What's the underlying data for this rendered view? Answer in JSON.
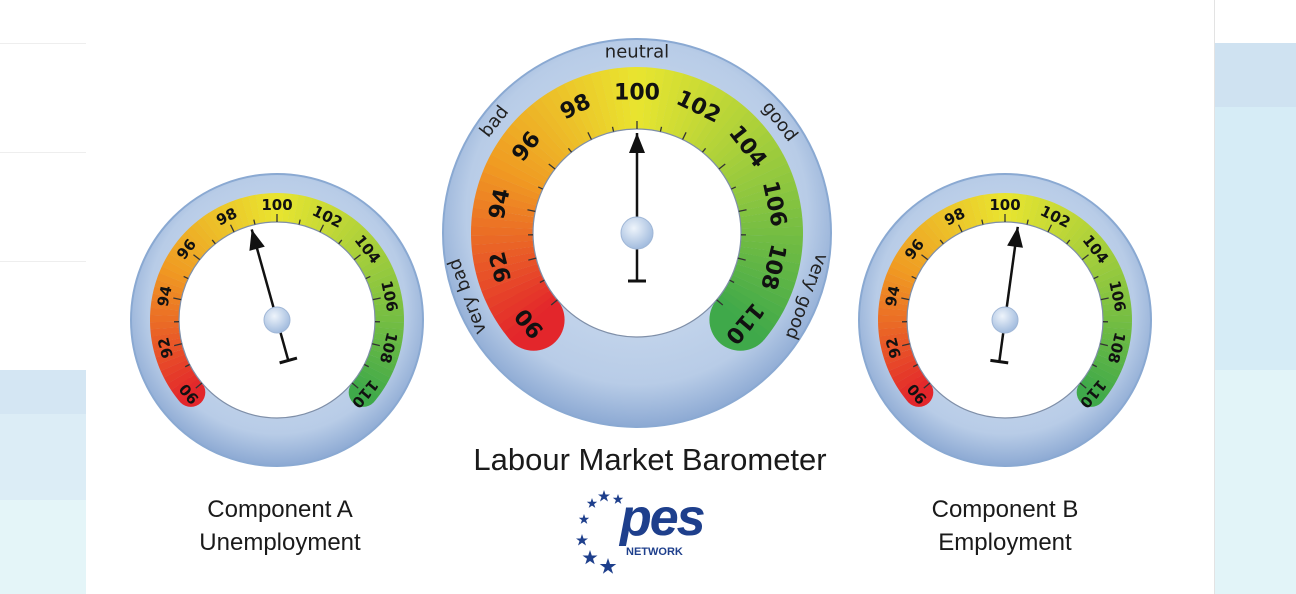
{
  "colors": {
    "rim": "#b3c9e6",
    "rim_edge": "#8aa9d2",
    "scale_red": "#e3262b",
    "scale_orange": "#f09a22",
    "scale_yellow": "#e9e52f",
    "scale_green": "#3fa94a",
    "needle": "#111111",
    "logo_blue": "#1e3f8c",
    "band_light_blue": "#d5e8f4",
    "band_cyan": "#dff3f7"
  },
  "chart_data": [
    {
      "type": "gauge",
      "name": "component-a",
      "title": "Component A",
      "subtitle": "Unemployment",
      "scale_min": 90,
      "scale_max": 110,
      "tick_labels": [
        "90",
        "92",
        "94",
        "96",
        "98",
        "100",
        "102",
        "104",
        "106",
        "108",
        "110"
      ],
      "value": 98.8
    },
    {
      "type": "gauge",
      "name": "labour-market-barometer",
      "title": "Labour Market Barometer",
      "scale_min": 90,
      "scale_max": 110,
      "tick_labels": [
        "90",
        "92",
        "94",
        "96",
        "98",
        "100",
        "102",
        "104",
        "106",
        "108",
        "110"
      ],
      "zone_labels": [
        "very bad",
        "bad",
        "neutral",
        "good",
        "very good"
      ],
      "value": 100
    },
    {
      "type": "gauge",
      "name": "component-b",
      "title": "Component B",
      "subtitle": "Employment",
      "scale_min": 90,
      "scale_max": 110,
      "tick_labels": [
        "90",
        "92",
        "94",
        "96",
        "98",
        "100",
        "102",
        "104",
        "106",
        "108",
        "110"
      ],
      "value": 100.6
    }
  ],
  "logo": {
    "text": "pes",
    "subtext": "NETWORK"
  }
}
